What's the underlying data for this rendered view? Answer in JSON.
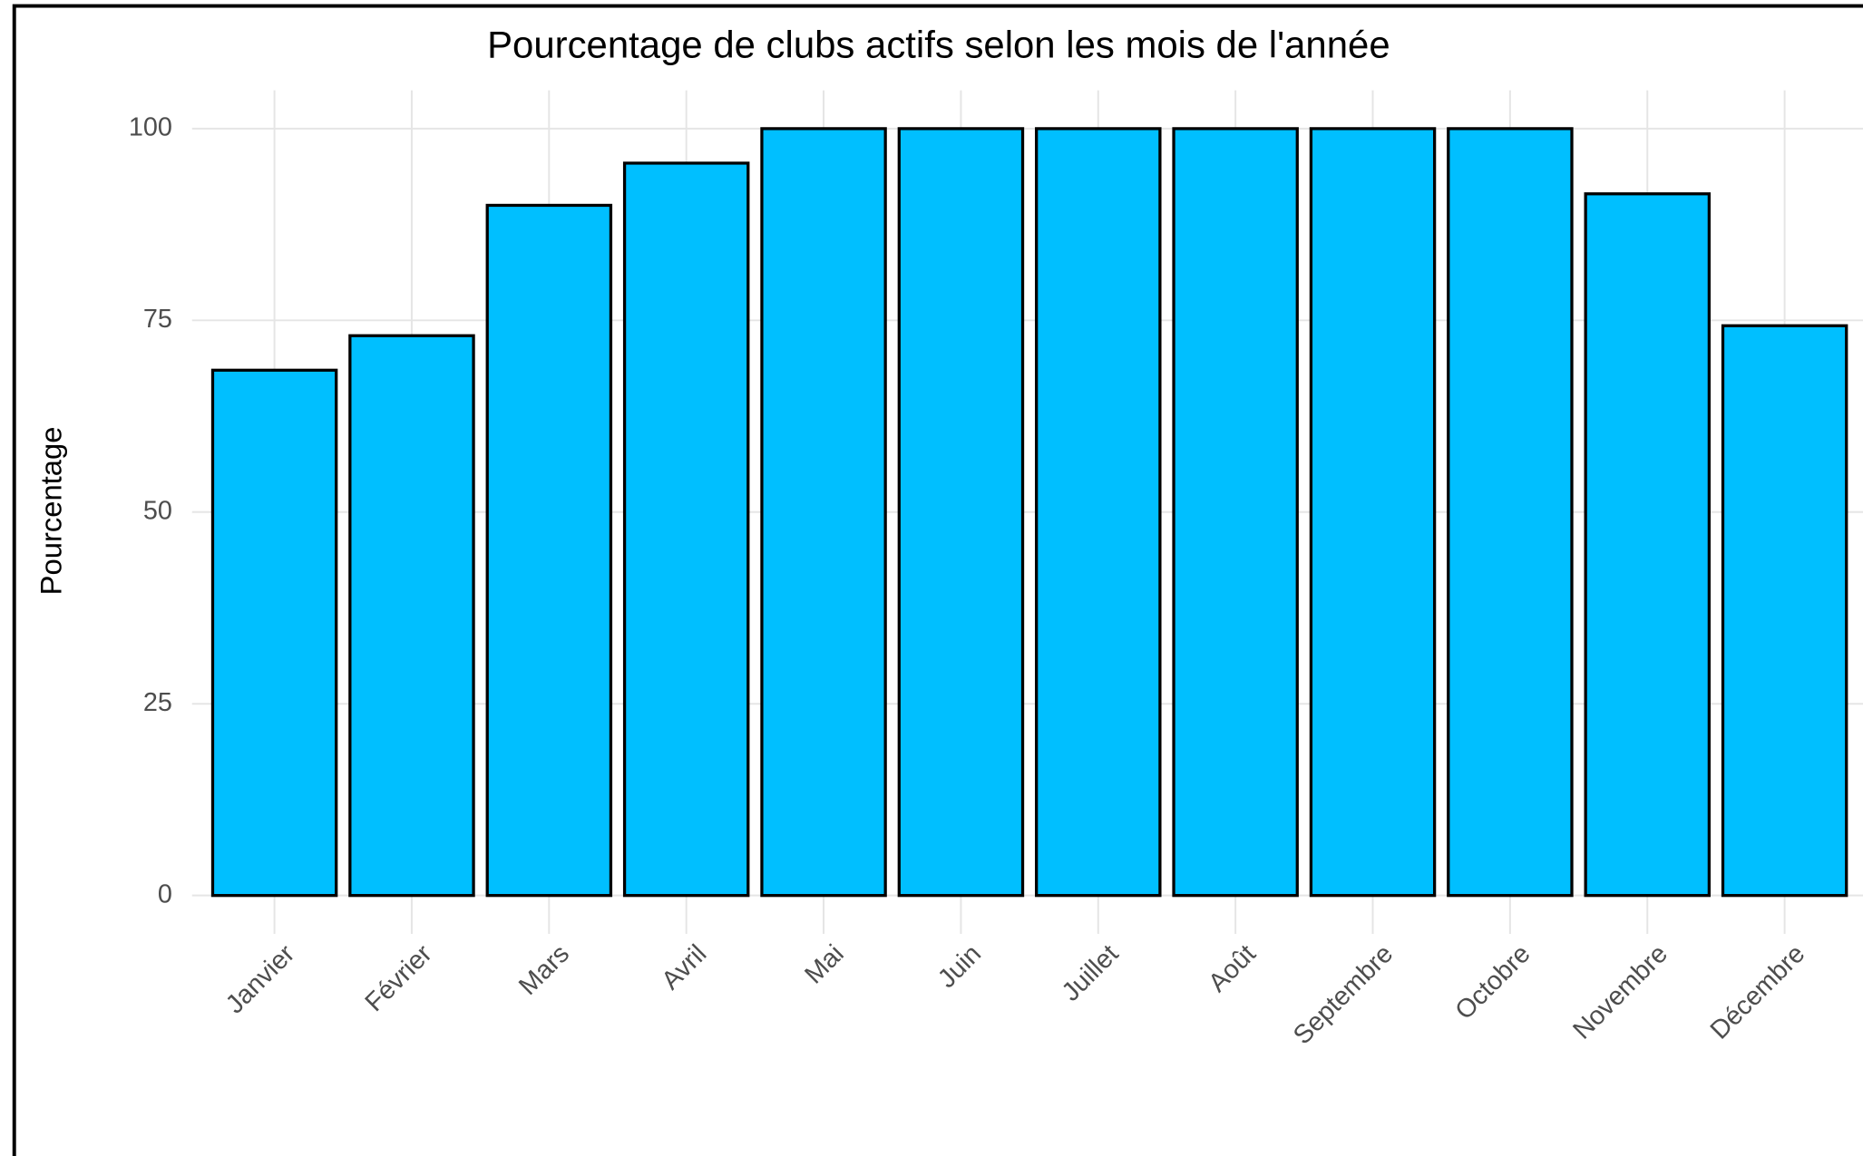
{
  "chart_data": {
    "type": "bar",
    "title": "Pourcentage de clubs actifs selon les mois de l'année",
    "y_label": "Pourcentage",
    "categories": [
      "Janvier",
      "Février",
      "Mars",
      "Avril",
      "Mai",
      "Juin",
      "Juillet",
      "Août",
      "Septembre",
      "Octobre",
      "Novembre",
      "Décembre"
    ],
    "values": [
      68.5,
      73,
      90,
      95.5,
      100,
      100,
      100,
      100,
      100,
      100,
      91.5,
      74.3
    ],
    "color": "#00bfff",
    "ylim": [
      -5,
      105
    ],
    "yticks": [
      0,
      25,
      50,
      75,
      100
    ],
    "grid": true
  }
}
